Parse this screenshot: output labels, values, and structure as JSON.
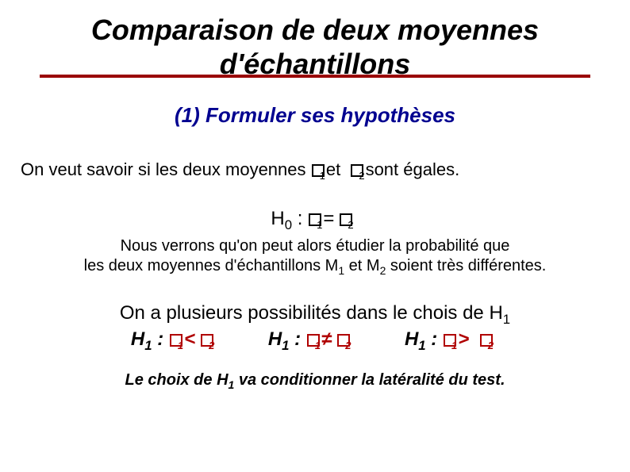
{
  "colors": {
    "background": "#ffffff",
    "text": "#000000",
    "accent_red": "#9a0000",
    "subtitle_blue": "#000090"
  },
  "typography": {
    "family": "Arial",
    "title_size_pt": 36,
    "subtitle_size_pt": 26,
    "body_size_pt": 22,
    "note_size_pt": 20
  },
  "title": "Comparaison de deux moyennes d'échantillons",
  "subtitle": "(1) Formuler ses hypothèses",
  "intro_prefix": "On veut savoir si les deux moyennes ",
  "intro_mid": "et ",
  "intro_suffix": "sont égales.",
  "h0_prefix": "H",
  "h0_sub": "0",
  "h0_colon": " : ",
  "h0_op": "=",
  "note_l1": "Nous verrons qu'on peut alors étudier la probabilité que",
  "note_l2_a": "les deux moyennes d'échantillons M",
  "note_l2_b": " et M",
  "note_l2_c": " soient très différentes.",
  "note_sub1": "1",
  "note_sub2": "2",
  "h1_intro_a": "On a plusieurs possibilités dans le chois de H",
  "h1_intro_sub": "1",
  "h1_opts": [
    {
      "label_a": "H",
      "sub": "1",
      "colon": " : ",
      "op": "<"
    },
    {
      "label_a": "H",
      "sub": "1",
      "colon": " : ",
      "op": "≠"
    },
    {
      "label_a": "H",
      "sub": "1",
      "colon": " : ",
      "op": ">"
    }
  ],
  "footer_a": "Le choix de H",
  "footer_sub": "1",
  "footer_b": " va conditionner la latéralité du test."
}
